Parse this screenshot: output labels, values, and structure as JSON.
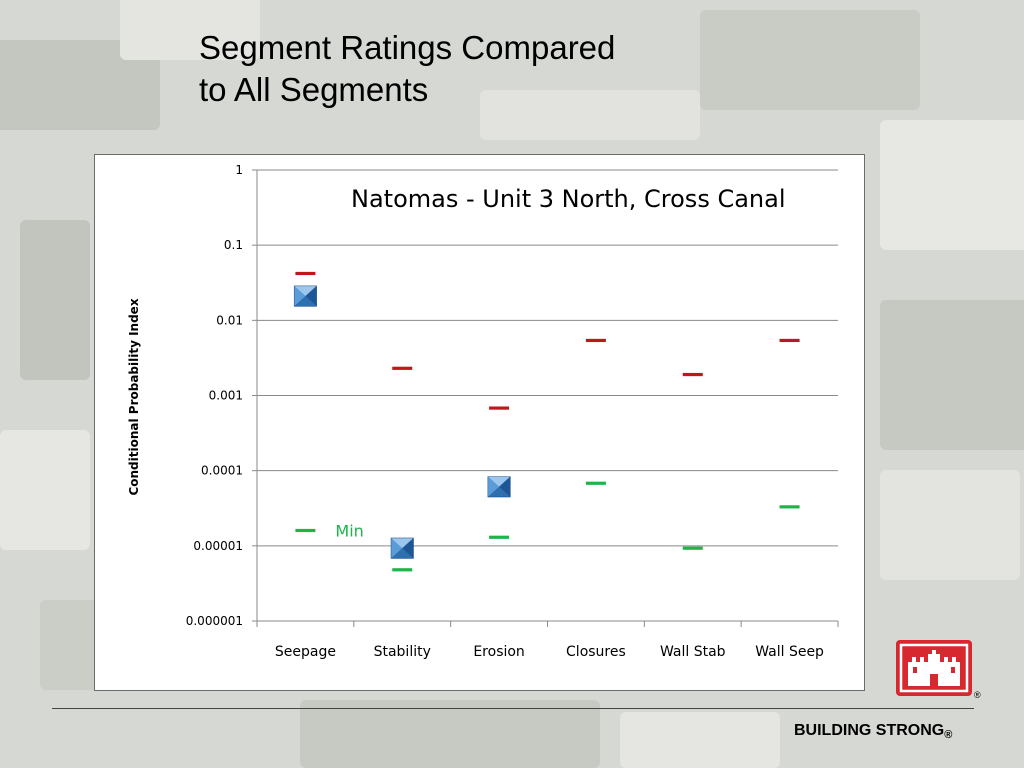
{
  "slide": {
    "title_line1": "Segment Ratings Compared",
    "title_line2": "to All Segments",
    "footer_text": "BUILDING STRONG",
    "footer_reg": "®",
    "logo_reg": "®"
  },
  "colors": {
    "max_marker": "#c0161c",
    "min_marker": "#1db54a",
    "segment_marker": "#2f6fb0",
    "logo_red": "#d7282f"
  },
  "icons": {
    "logo": "castle-icon",
    "segment_marker": "pyramid-square-icon"
  },
  "chart_data": {
    "type": "scatter",
    "title": "Natomas - Unit 3 North, Cross Canal",
    "ylabel": "Conditional Probability Index",
    "xlabel": "",
    "yscale": "log",
    "ylim": [
      1e-06,
      1
    ],
    "y_ticks": [
      {
        "value": 1,
        "label": "1"
      },
      {
        "value": 0.1,
        "label": "0.1"
      },
      {
        "value": 0.01,
        "label": "0.01"
      },
      {
        "value": 0.001,
        "label": "0.001"
      },
      {
        "value": 0.0001,
        "label": "0.0001"
      },
      {
        "value": 1e-05,
        "label": "0.00001"
      },
      {
        "value": 1e-06,
        "label": "0.000001"
      }
    ],
    "grid": true,
    "categories": [
      "Seepage",
      "Stability",
      "Erosion",
      "Closures",
      "Wall Stab",
      "Wall Seep"
    ],
    "series": [
      {
        "values": [
          0.042,
          0.0023,
          0.00068,
          0.0054,
          0.0019,
          0.0054
        ]
      },
      {
        "values": [
          1.6e-05,
          4.8e-06,
          1.3e-05,
          6.8e-05,
          9.3e-06,
          3.3e-05
        ]
      },
      {
        "values": [
          0.021,
          9.3e-06,
          6.1e-05,
          null,
          null,
          null
        ]
      }
    ],
    "annotations": [
      {
        "text": "Min",
        "category": "Seepage"
      }
    ]
  }
}
